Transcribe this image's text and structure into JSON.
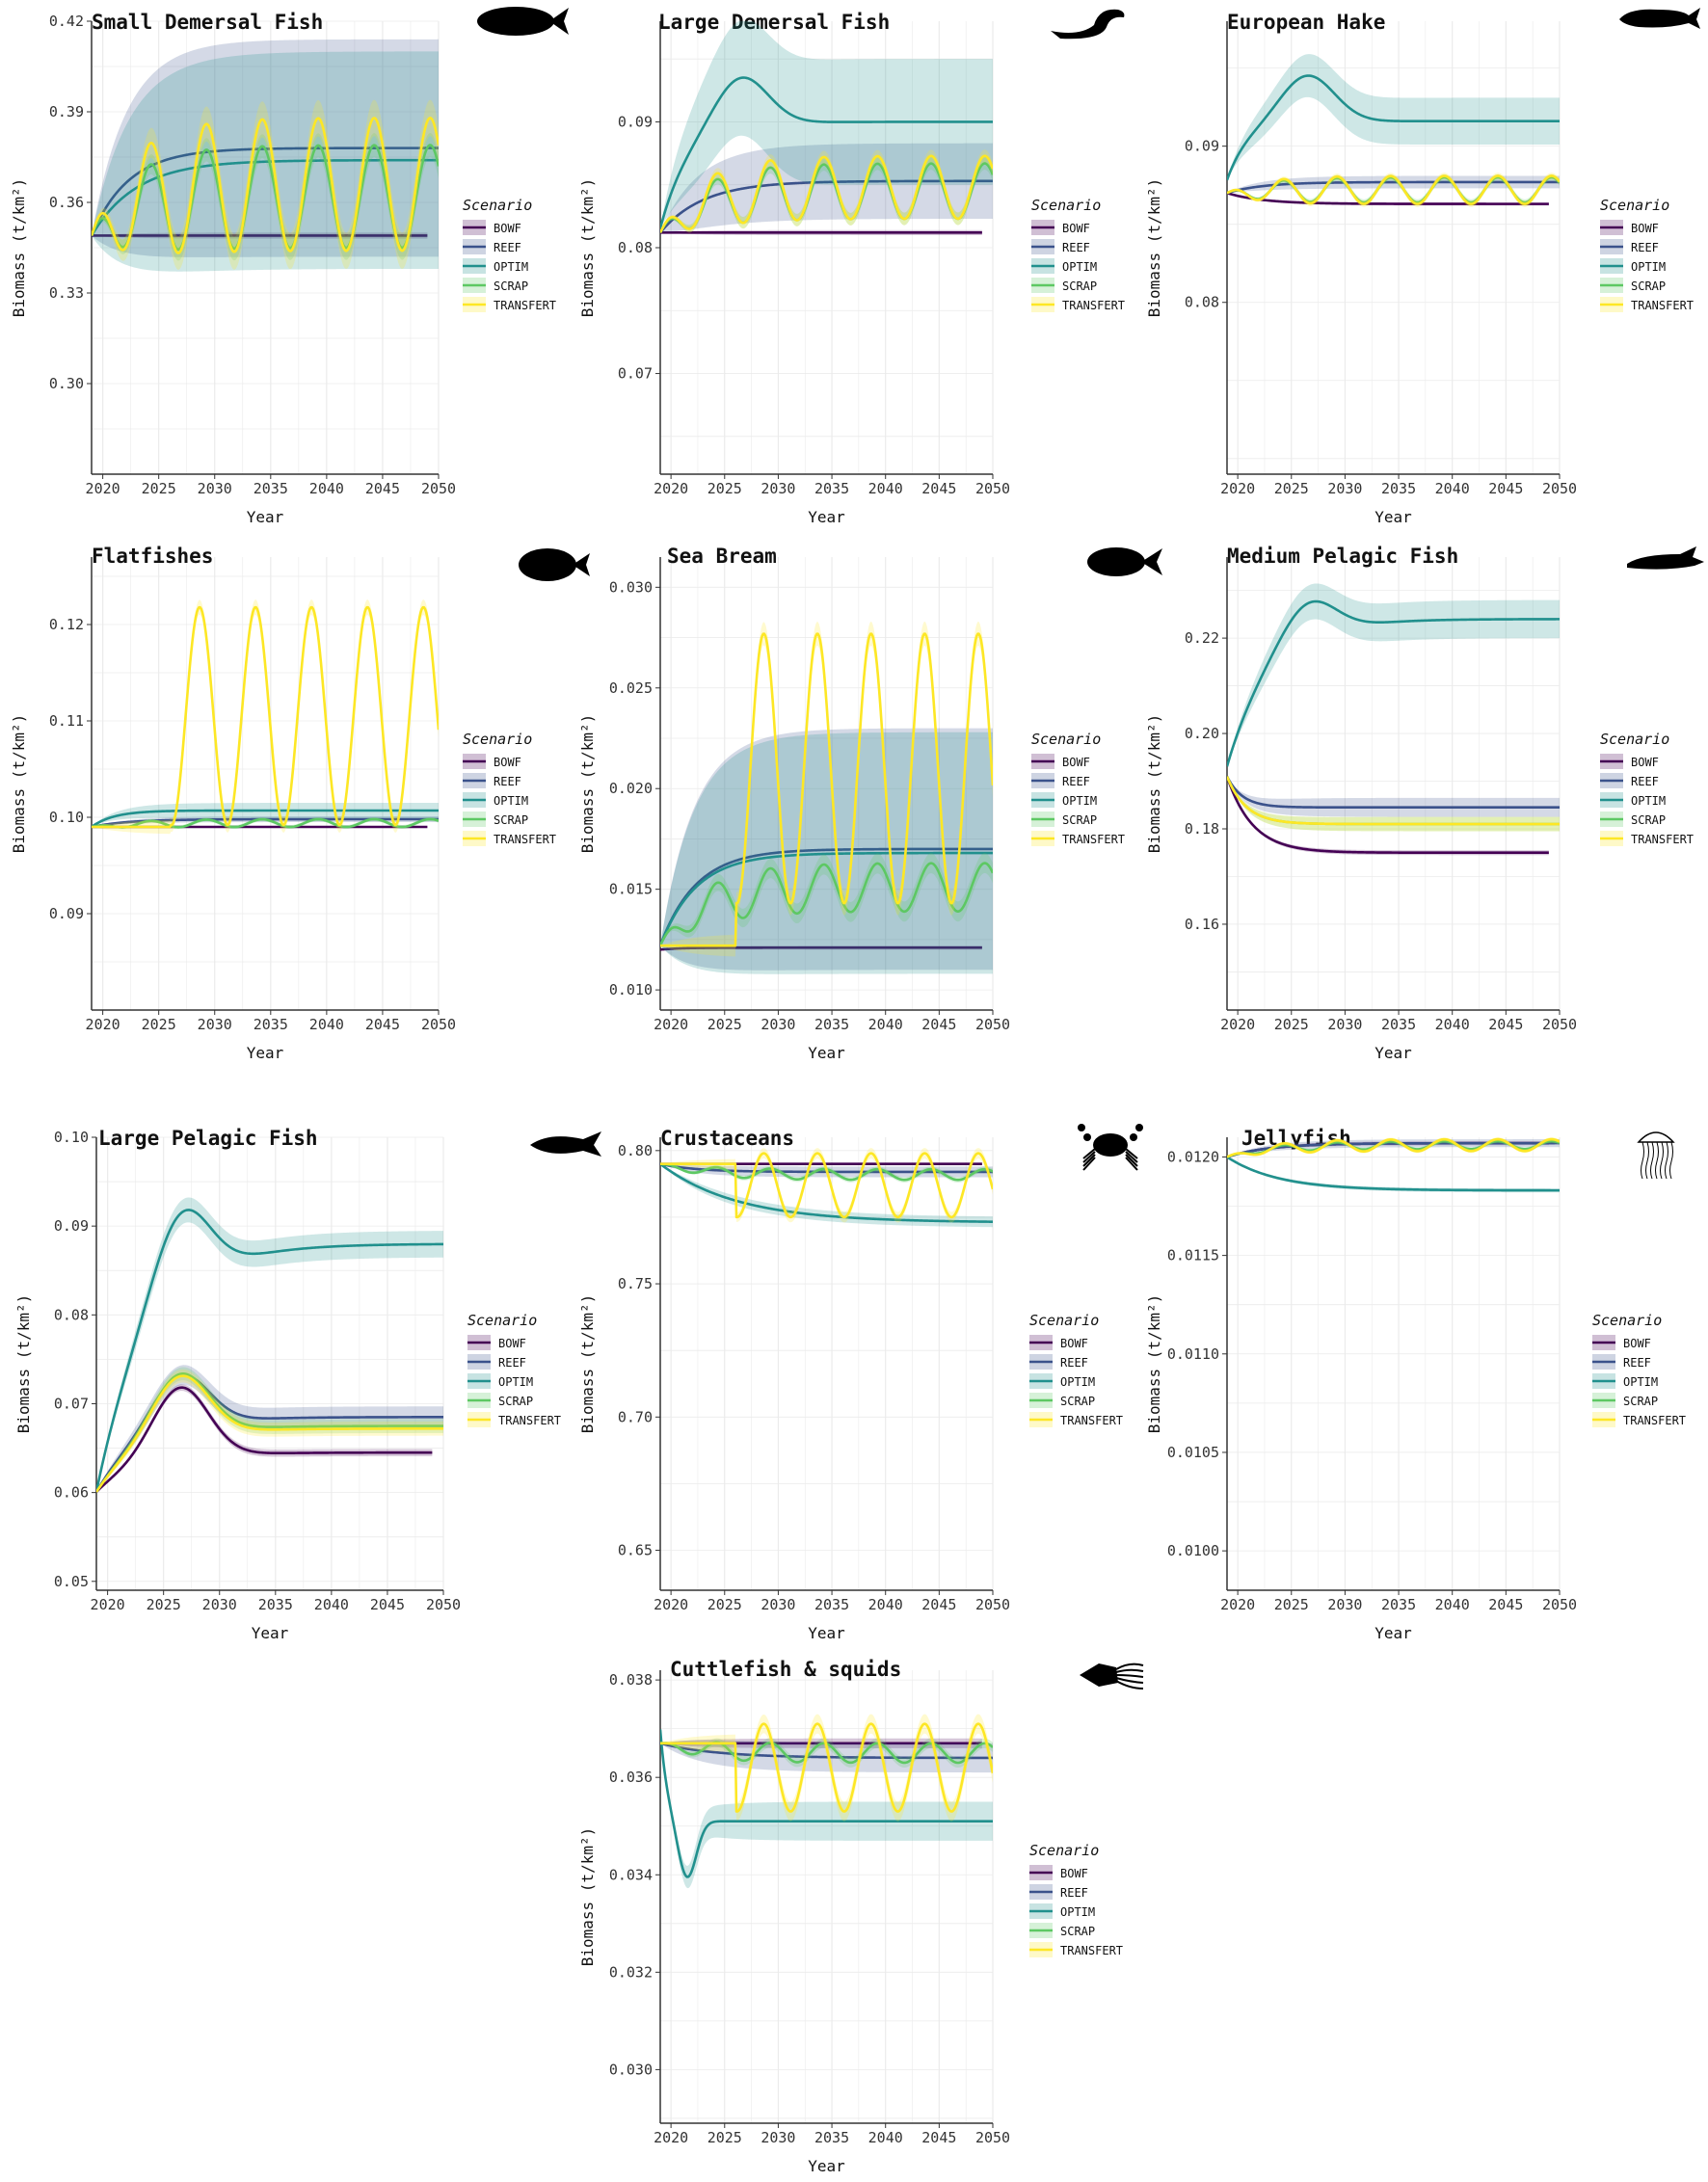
{
  "chart_data": [
    {
      "type": "line",
      "title": "Small Demersal Fish",
      "xlabel": "Year",
      "ylabel": "Biomass (t/km²)",
      "xlim": [
        2019,
        2050
      ],
      "ylim": [
        0.27,
        0.42
      ],
      "xticks": [
        "2020",
        "2025",
        "2030",
        "2035",
        "2040",
        "2045",
        "2050"
      ],
      "yticks": [
        "0.30",
        "0.33",
        "0.36",
        "0.39",
        "0.42"
      ],
      "icon": "fish-icon",
      "series": [
        {
          "name": "BOWF",
          "base": 0.349,
          "end": 0.349,
          "rise": 3,
          "osc": 0,
          "ci": 0.001,
          "decay": 0
        },
        {
          "name": "REEF",
          "base": 0.349,
          "end": 0.378,
          "rise": 5,
          "osc": 0,
          "ci": 0.036,
          "decay": 0
        },
        {
          "name": "OPTIM",
          "base": 0.349,
          "end": 0.374,
          "rise": 6,
          "osc": 0,
          "ci": 0.036,
          "decay": 0
        },
        {
          "name": "SCRAP",
          "base": 0.349,
          "end": 0.362,
          "rise": 6,
          "osc": 0.017,
          "ci": 0.004,
          "decay": 0
        },
        {
          "name": "TRANSFERT",
          "base": 0.349,
          "end": 0.366,
          "rise": 6,
          "osc": 0.022,
          "ci": 0.006,
          "decay": 0
        }
      ]
    },
    {
      "type": "line",
      "title": "Large Demersal Fish",
      "xlabel": "Year",
      "ylabel": "Biomass (t/km²)",
      "xlim": [
        2019,
        2050
      ],
      "ylim": [
        0.062,
        0.098
      ],
      "xticks": [
        "2020",
        "2025",
        "2030",
        "2035",
        "2040",
        "2045",
        "2050"
      ],
      "yticks": [
        "0.07",
        "0.08",
        "0.09"
      ],
      "icon": "eel-icon",
      "series": [
        {
          "name": "BOWF",
          "base": 0.0812,
          "end": 0.0812,
          "rise": 3,
          "osc": 0,
          "ci": 0.0002,
          "decay": 0
        },
        {
          "name": "REEF",
          "base": 0.0812,
          "end": 0.0853,
          "rise": 6,
          "osc": 0,
          "ci": 0.003,
          "decay": 0
        },
        {
          "name": "OPTIM",
          "base": 0.0815,
          "end": 0.09,
          "rise": 4,
          "osc": 0,
          "ci": 0.005,
          "decay": 0.006,
          "overshoot": 0.004
        },
        {
          "name": "SCRAP",
          "base": 0.0812,
          "end": 0.0845,
          "rise": 6,
          "osc": 0.0022,
          "ci": 0.0005,
          "decay": 0
        },
        {
          "name": "TRANSFERT",
          "base": 0.0812,
          "end": 0.0848,
          "rise": 6,
          "osc": 0.0025,
          "ci": 0.0005,
          "decay": 0
        }
      ]
    },
    {
      "type": "line",
      "title": "European Hake",
      "xlabel": "Year",
      "ylabel": "Biomass (t/km²)",
      "xlim": [
        2019,
        2050
      ],
      "ylim": [
        0.069,
        0.098
      ],
      "xticks": [
        "2020",
        "2025",
        "2030",
        "2035",
        "2040",
        "2045",
        "2050"
      ],
      "yticks": [
        "0.08",
        "0.09"
      ],
      "icon": "hake-icon",
      "series": [
        {
          "name": "BOWF",
          "base": 0.087,
          "end": 0.0863,
          "rise": 5,
          "osc": 0,
          "ci": 0.0001,
          "decay": 0
        },
        {
          "name": "REEF",
          "base": 0.087,
          "end": 0.0877,
          "rise": 5,
          "osc": 0,
          "ci": 0.0004,
          "decay": 0
        },
        {
          "name": "OPTIM",
          "base": 0.0878,
          "end": 0.0916,
          "rise": 3,
          "osc": 0,
          "ci": 0.0015,
          "decay": 0.008,
          "overshoot": 0.003
        },
        {
          "name": "SCRAP",
          "base": 0.087,
          "end": 0.0872,
          "rise": 6,
          "osc": 0.0008,
          "ci": 0.0002,
          "decay": 0
        },
        {
          "name": "TRANSFERT",
          "base": 0.087,
          "end": 0.0872,
          "rise": 6,
          "osc": 0.0009,
          "ci": 0.0002,
          "decay": 0
        }
      ]
    },
    {
      "type": "line",
      "title": "Flatfishes",
      "xlabel": "Year",
      "ylabel": "Biomass (t/km²)",
      "xlim": [
        2019,
        2050
      ],
      "ylim": [
        0.08,
        0.127
      ],
      "xticks": [
        "2020",
        "2025",
        "2030",
        "2035",
        "2040",
        "2045",
        "2050"
      ],
      "yticks": [
        "0.09",
        "0.10",
        "0.11",
        "0.12"
      ],
      "icon": "flatfish-icon",
      "series": [
        {
          "name": "BOWF",
          "base": 0.099,
          "end": 0.099,
          "rise": 3,
          "osc": 0,
          "ci": 0.0001,
          "decay": 0
        },
        {
          "name": "REEF",
          "base": 0.099,
          "end": 0.0998,
          "rise": 5,
          "osc": 0,
          "ci": 0.0003,
          "decay": 0
        },
        {
          "name": "OPTIM",
          "base": 0.099,
          "end": 0.1007,
          "rise": 3,
          "osc": 0,
          "ci": 0.0008,
          "decay": 0
        },
        {
          "name": "SCRAP",
          "base": 0.099,
          "end": 0.0994,
          "rise": 6,
          "osc": 0.0004,
          "ci": 0.0002,
          "decay": 0
        },
        {
          "name": "TRANSFERT",
          "base": 0.099,
          "end": 0.1105,
          "rise": 1,
          "osc": 0.0113,
          "ci": 0.0008,
          "decay": 0,
          "spike": 1
        }
      ]
    },
    {
      "type": "line",
      "title": "Sea Bream",
      "xlabel": "Year",
      "ylabel": "Biomass (t/km²)",
      "xlim": [
        2019,
        2050
      ],
      "ylim": [
        0.009,
        0.0315
      ],
      "xticks": [
        "2020",
        "2025",
        "2030",
        "2035",
        "2040",
        "2045",
        "2050"
      ],
      "yticks": [
        "0.010",
        "0.015",
        "0.020",
        "0.025",
        "0.030"
      ],
      "icon": "seabream-icon",
      "series": [
        {
          "name": "BOWF",
          "base": 0.012,
          "end": 0.0121,
          "rise": 3,
          "osc": 0,
          "ci": 0.0001,
          "decay": 0
        },
        {
          "name": "REEF",
          "base": 0.0122,
          "end": 0.017,
          "rise": 5,
          "osc": 0,
          "ci": 0.006,
          "decay": 0
        },
        {
          "name": "OPTIM",
          "base": 0.0122,
          "end": 0.0168,
          "rise": 5,
          "osc": 0,
          "ci": 0.006,
          "decay": 0
        },
        {
          "name": "SCRAP",
          "base": 0.0122,
          "end": 0.0151,
          "rise": 6,
          "osc": 0.0012,
          "ci": 0.0005,
          "decay": 0
        },
        {
          "name": "TRANSFERT",
          "base": 0.0122,
          "end": 0.021,
          "rise": 1,
          "osc": 0.0067,
          "ci": 0.0006,
          "decay": 0,
          "spike": 1
        }
      ]
    },
    {
      "type": "line",
      "title": "Medium Pelagic Fish",
      "xlabel": "Year",
      "ylabel": "Biomass (t/km²)",
      "xlim": [
        2019,
        2050
      ],
      "ylim": [
        0.142,
        0.237
      ],
      "xticks": [
        "2020",
        "2025",
        "2030",
        "2035",
        "2040",
        "2045",
        "2050"
      ],
      "yticks": [
        "0.16",
        "0.18",
        "0.20",
        "0.22"
      ],
      "icon": "sardine-icon",
      "series": [
        {
          "name": "BOWF",
          "base": 0.191,
          "end": 0.175,
          "rise": -6,
          "osc": 0,
          "ci": 0.0005,
          "decay": 0
        },
        {
          "name": "REEF",
          "base": 0.191,
          "end": 0.1845,
          "rise": -10,
          "osc": 0,
          "ci": 0.002,
          "decay": 0
        },
        {
          "name": "OPTIM",
          "base": 0.193,
          "end": 0.224,
          "rise": 6,
          "osc": 0,
          "ci": 0.004,
          "decay": 0.008,
          "overshoot": 0.008
        },
        {
          "name": "SCRAP",
          "base": 0.191,
          "end": 0.181,
          "rise": -8,
          "osc": 0,
          "ci": 0.0015,
          "decay": 0
        },
        {
          "name": "TRANSFERT",
          "base": 0.191,
          "end": 0.181,
          "rise": -8,
          "osc": 0,
          "ci": 0.0015,
          "decay": 0
        }
      ]
    },
    {
      "type": "line",
      "title": "Large Pelagic Fish",
      "xlabel": "Year",
      "ylabel": "Biomass (t/km²)",
      "xlim": [
        2019,
        2050
      ],
      "ylim": [
        0.049,
        0.1
      ],
      "xticks": [
        "2020",
        "2025",
        "2030",
        "2035",
        "2040",
        "2045",
        "2050"
      ],
      "yticks": [
        "0.05",
        "0.06",
        "0.07",
        "0.08",
        "0.09",
        "0.10"
      ],
      "icon": "tuna-icon",
      "series": [
        {
          "name": "BOWF",
          "base": 0.06,
          "end": 0.0645,
          "rise": 6,
          "osc": 0,
          "ci": 0.0004,
          "decay": 0.009,
          "overshoot": 0.008
        },
        {
          "name": "REEF",
          "base": 0.06,
          "end": 0.0685,
          "rise": 6,
          "osc": 0,
          "ci": 0.0012,
          "decay": 0.006,
          "overshoot": 0.006
        },
        {
          "name": "OPTIM",
          "base": 0.06,
          "end": 0.088,
          "rise": 7,
          "osc": 0,
          "ci": 0.0015,
          "decay": 0.009,
          "overshoot": 0.009
        },
        {
          "name": "SCRAP",
          "base": 0.06,
          "end": 0.0675,
          "rise": 6,
          "osc": 0,
          "ci": 0.0008,
          "decay": 0.006,
          "overshoot": 0.007
        },
        {
          "name": "TRANSFERT",
          "base": 0.06,
          "end": 0.0672,
          "rise": 6,
          "osc": 0,
          "ci": 0.0008,
          "decay": 0.006,
          "overshoot": 0.007
        }
      ]
    },
    {
      "type": "line",
      "title": "Crustaceans",
      "xlabel": "Year",
      "ylabel": "Biomass (t/km²)",
      "xlim": [
        2019,
        2050
      ],
      "ylim": [
        0.635,
        0.805
      ],
      "xticks": [
        "2020",
        "2025",
        "2030",
        "2035",
        "2040",
        "2045",
        "2050"
      ],
      "yticks": [
        "0.65",
        "0.70",
        "0.75",
        "0.80"
      ],
      "icon": "crab-icon",
      "series": [
        {
          "name": "BOWF",
          "base": 0.795,
          "end": 0.795,
          "rise": 3,
          "osc": 0,
          "ci": 0.0005,
          "decay": 0
        },
        {
          "name": "REEF",
          "base": 0.795,
          "end": 0.792,
          "rise": 5,
          "osc": 0,
          "ci": 0.002,
          "decay": 0
        },
        {
          "name": "OPTIM",
          "base": 0.795,
          "end": 0.773,
          "rise": -2,
          "osc": 0,
          "ci": 0.002,
          "decay": 0
        },
        {
          "name": "SCRAP",
          "base": 0.795,
          "end": 0.791,
          "rise": 6,
          "osc": 0.002,
          "ci": 0.001,
          "decay": 0
        },
        {
          "name": "TRANSFERT",
          "base": 0.795,
          "end": 0.787,
          "rise": 1,
          "osc": 0.012,
          "ci": 0.002,
          "decay": 0,
          "spike": 1
        }
      ]
    },
    {
      "type": "line",
      "title": "Jellyfish",
      "xlabel": "Year",
      "ylabel": "Biomass (t/km²)",
      "xlim": [
        2019,
        2050
      ],
      "ylim": [
        0.0098,
        0.0121
      ],
      "xticks": [
        "2020",
        "2025",
        "2030",
        "2035",
        "2040",
        "2045",
        "2050"
      ],
      "yticks": [
        "0.0100",
        "0.0105",
        "0.0110",
        "0.0115",
        "0.0120"
      ],
      "icon": "jellyfish-icon",
      "series": [
        {
          "name": "BOWF",
          "base": 0.012,
          "end": 0.01207,
          "rise": 6,
          "osc": 0,
          "ci": 1e-05,
          "decay": 0
        },
        {
          "name": "REEF",
          "base": 0.012,
          "end": 0.01207,
          "rise": 6,
          "osc": 0,
          "ci": 2e-05,
          "decay": 0
        },
        {
          "name": "OPTIM",
          "base": 0.012,
          "end": 0.01183,
          "rise": -3,
          "osc": 0,
          "ci": 1e-05,
          "decay": 0
        },
        {
          "name": "SCRAP",
          "base": 0.012,
          "end": 0.01206,
          "rise": 6,
          "osc": 2e-05,
          "ci": 1e-05,
          "decay": 0
        },
        {
          "name": "TRANSFERT",
          "base": 0.012,
          "end": 0.01206,
          "rise": 6,
          "osc": 3e-05,
          "ci": 1e-05,
          "decay": 0
        }
      ]
    },
    {
      "type": "line",
      "title": "Cuttlefish & squids",
      "xlabel": "Year",
      "ylabel": "Biomass (t/km²)",
      "xlim": [
        2019,
        2050
      ],
      "ylim": [
        0.0289,
        0.0382
      ],
      "xticks": [
        "2020",
        "2025",
        "2030",
        "2035",
        "2040",
        "2045",
        "2050"
      ],
      "yticks": [
        "0.030",
        "0.032",
        "0.034",
        "0.036",
        "0.038"
      ],
      "icon": "squid-icon",
      "series": [
        {
          "name": "BOWF",
          "base": 0.0367,
          "end": 0.0367,
          "rise": 3,
          "osc": 0,
          "ci": 0.0001,
          "decay": 0
        },
        {
          "name": "REEF",
          "base": 0.0367,
          "end": 0.0364,
          "rise": 8,
          "osc": 0,
          "ci": 0.0003,
          "decay": 0
        },
        {
          "name": "OPTIM",
          "base": 0.037,
          "end": 0.0351,
          "rise": -20,
          "osc": 0,
          "ci": 0.0004,
          "decay": 0,
          "dip": 0.0012
        },
        {
          "name": "SCRAP",
          "base": 0.0367,
          "end": 0.0365,
          "rise": 6,
          "osc": 0.0002,
          "ci": 0.0001,
          "decay": 0
        },
        {
          "name": "TRANSFERT",
          "base": 0.0367,
          "end": 0.0362,
          "rise": 1,
          "osc": 0.0009,
          "ci": 0.0002,
          "decay": 0,
          "spike": 1
        }
      ]
    }
  ],
  "legend": {
    "title": "Scenario",
    "entries": [
      "BOWF",
      "REEF",
      "OPTIM",
      "SCRAP",
      "TRANSFERT"
    ]
  },
  "colors": {
    "BOWF": "#440154",
    "REEF": "#3b528b",
    "OPTIM": "#21908d",
    "SCRAP": "#5dc863",
    "TRANSFERT": "#fde725",
    "grid": "#ebebeb",
    "axis": "#333333"
  }
}
